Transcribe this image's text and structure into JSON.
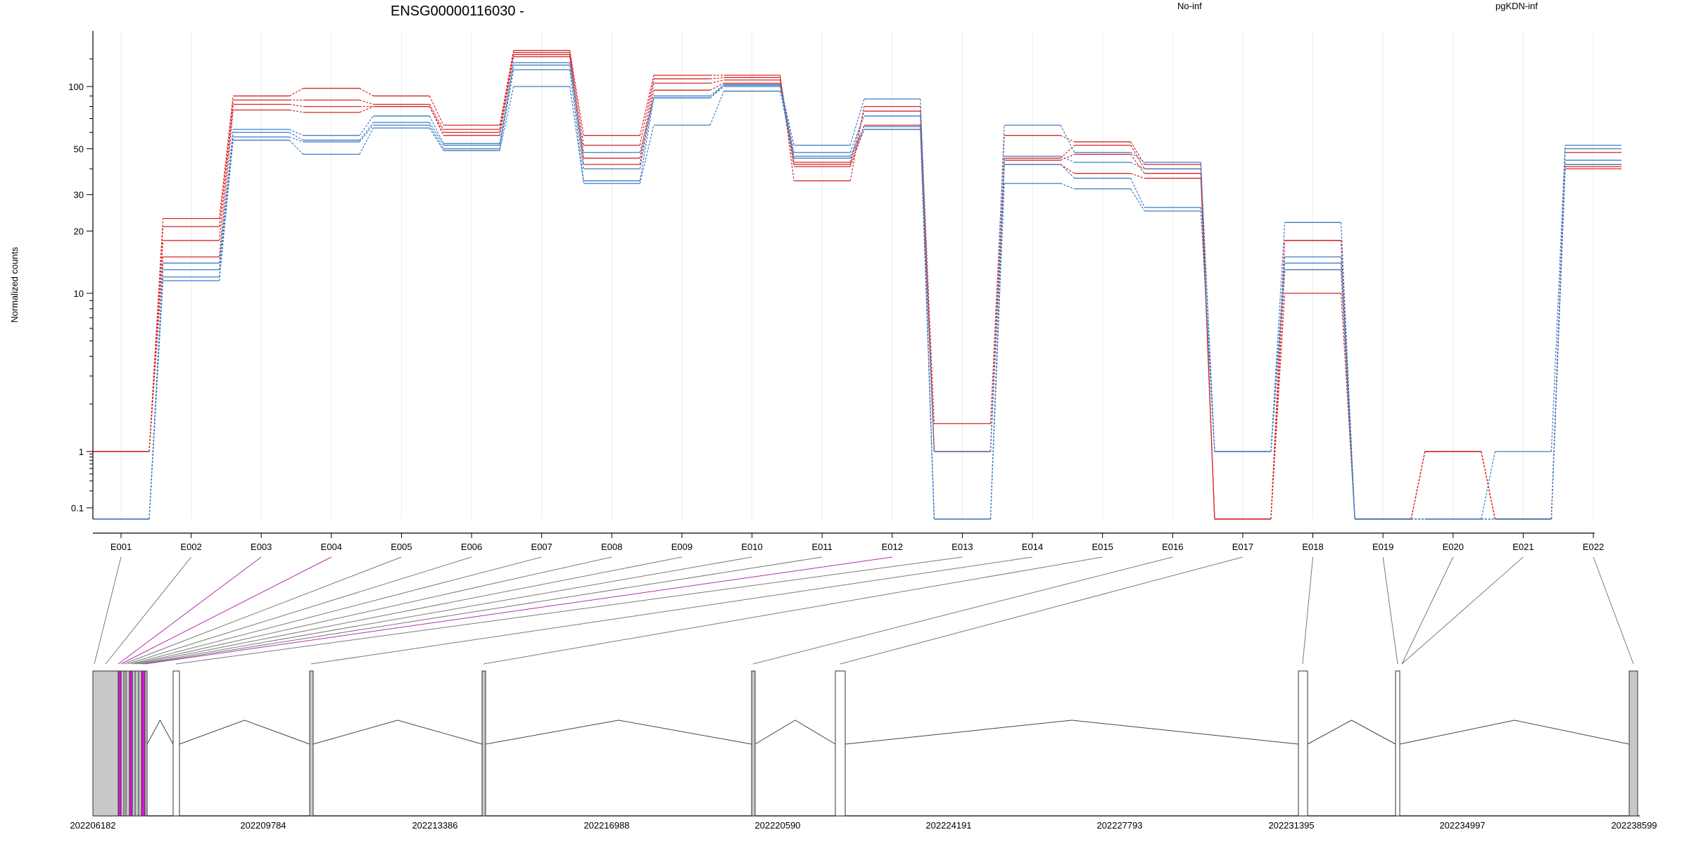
{
  "chart_data": {
    "type": "line",
    "title": "ENSG00000116030 -",
    "ylabel": "Normalized counts",
    "xlabel": "",
    "y_scale": "log-like (zero floor)",
    "ylim": [
      0.08,
      200
    ],
    "y_ticks": [
      {
        "value": 0.1,
        "label": "0.1"
      },
      {
        "value": 1,
        "label": "1"
      },
      {
        "value": 10,
        "label": "10"
      },
      {
        "value": 20,
        "label": "20"
      },
      {
        "value": 30,
        "label": "30"
      },
      {
        "value": 50,
        "label": "50"
      },
      {
        "value": 100,
        "label": "100"
      }
    ],
    "grid": "vertical light lines at exon ticks",
    "legend_placement": "top",
    "legend": [
      {
        "name": "No-inf",
        "color": "#d62728"
      },
      {
        "name": "pgKDN-inf",
        "color": "#3b7dc4"
      }
    ],
    "categories": [
      "E001",
      "E002",
      "E003",
      "E004",
      "E005",
      "E006",
      "E007",
      "E008",
      "E009",
      "E010",
      "E011",
      "E012",
      "E013",
      "E014",
      "E015",
      "E016",
      "E017",
      "E018",
      "E019",
      "E020",
      "E021",
      "E022"
    ],
    "series": [
      {
        "name": "No-inf",
        "color": "#d62728",
        "values": [
          1,
          23,
          90,
          98,
          90,
          65,
          170,
          58,
          118,
          118,
          35,
          80,
          1.5,
          58,
          54,
          42,
          0.08,
          18,
          0.08,
          1,
          0.08,
          48
        ]
      },
      {
        "name": "No-inf",
        "color": "#d62728",
        "values": [
          1,
          21,
          86,
          86,
          82,
          62,
          165,
          52,
          112,
          114,
          43,
          76,
          1,
          45,
          52,
          40,
          0.08,
          18,
          0.08,
          1,
          0.08,
          42
        ]
      },
      {
        "name": "No-inf",
        "color": "#d62728",
        "values": [
          1,
          18,
          82,
          80,
          80,
          60,
          160,
          45,
          105,
          110,
          42,
          65,
          1,
          44,
          47,
          38,
          0.08,
          13,
          0.08,
          1,
          0.08,
          41
        ]
      },
      {
        "name": "No-inf",
        "color": "#d62728",
        "values": [
          1,
          15,
          77,
          75,
          80,
          58,
          155,
          42,
          96,
          105,
          41,
          62,
          1,
          42,
          38,
          36,
          0.08,
          10,
          0.08,
          1,
          0.08,
          40
        ]
      },
      {
        "name": "pgKDN-inf",
        "color": "#3b7dc4",
        "values": [
          0.08,
          14,
          62,
          58,
          72,
          53,
          142,
          48,
          88,
          103,
          52,
          87,
          1,
          65,
          48,
          43,
          1,
          22,
          0.08,
          0.08,
          1,
          52
        ]
      },
      {
        "name": "pgKDN-inf",
        "color": "#3b7dc4",
        "values": [
          0.08,
          13,
          60,
          55,
          67,
          52,
          137,
          40,
          90,
          102,
          48,
          72,
          0.08,
          46,
          43,
          40,
          1,
          15,
          0.08,
          0.08,
          0.08,
          50
        ]
      },
      {
        "name": "pgKDN-inf",
        "color": "#3b7dc4",
        "values": [
          0.08,
          12,
          57,
          54,
          65,
          50,
          128,
          35,
          88,
          100,
          46,
          64,
          0.08,
          42,
          36,
          26,
          1,
          14,
          0.08,
          0.08,
          0.08,
          44
        ]
      },
      {
        "name": "pgKDN-inf",
        "color": "#3b7dc4",
        "values": [
          0.08,
          11.5,
          55,
          47,
          63,
          49,
          100,
          34,
          65,
          95,
          45,
          62,
          0.08,
          34,
          32,
          25,
          1,
          13,
          0.08,
          0.08,
          0.08,
          42
        ]
      }
    ],
    "gene_model": {
      "coordinate_labels": [
        "202206182",
        "202209784",
        "202213386",
        "202216988",
        "202220590",
        "202224191",
        "202227793",
        "202231395",
        "202234997",
        "202238599"
      ],
      "highlighted_exons": [
        "E003",
        "E004",
        "E012"
      ]
    }
  }
}
